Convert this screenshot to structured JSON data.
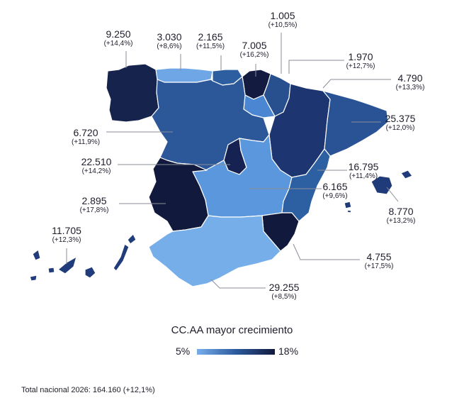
{
  "title": "CC.AA mayor crecimiento",
  "legend": {
    "min_label": "5%",
    "max_label": "18%",
    "colors": [
      "#76aeea",
      "#2c5a9e",
      "#111a3c"
    ]
  },
  "total": "Total nacional 2026: 164.160 (+12,1%)",
  "regions": [
    {
      "key": "galicia",
      "value": "9.250",
      "pct": "(+14,4%)",
      "color": "#16234d"
    },
    {
      "key": "asturias",
      "value": "3.030",
      "pct": "(+8,6%)",
      "color": "#6fa6e6"
    },
    {
      "key": "cantabria",
      "value": "2.165",
      "pct": "(+11,5%)",
      "color": "#2d5e9f"
    },
    {
      "key": "pais_vasco",
      "value": "7.005",
      "pct": "(+16,2%)",
      "color": "#131c40"
    },
    {
      "key": "la_rioja",
      "value": "1.005",
      "pct": "(+10,5%)",
      "color": "#4a86d1"
    },
    {
      "key": "navarra",
      "value": "1.970",
      "pct": "(+12,7%)",
      "color": "#28508f"
    },
    {
      "key": "aragon",
      "value": "4.790",
      "pct": "(+13,3%)",
      "color": "#1d3570"
    },
    {
      "key": "cataluna",
      "value": "25.375",
      "pct": "(+12,0%)",
      "color": "#2a5395"
    },
    {
      "key": "castilla_leon",
      "value": "6.720",
      "pct": "(+11,9%)",
      "color": "#2c5798"
    },
    {
      "key": "madrid",
      "value": "22.510",
      "pct": "(+14,2%)",
      "color": "#162352"
    },
    {
      "key": "valencia",
      "value": "16.795",
      "pct": "(+11,4%)",
      "color": "#2d60a2"
    },
    {
      "key": "castilla_la_mancha",
      "value": "6.165",
      "pct": "(+9,6%)",
      "color": "#5a97dc"
    },
    {
      "key": "extremadura",
      "value": "2.895",
      "pct": "(+17,8%)",
      "color": "#111a3c"
    },
    {
      "key": "baleares",
      "value": "8.770",
      "pct": "(+13,2%)",
      "color": "#1f3b7a"
    },
    {
      "key": "canarias",
      "value": "11.705",
      "pct": "(+12,3%)",
      "color": "#203c7b"
    },
    {
      "key": "murcia",
      "value": "4.755",
      "pct": "(+17,5%)",
      "color": "#111a3c"
    },
    {
      "key": "andalucia",
      "value": "29.255",
      "pct": "(+8,5%)",
      "color": "#76aeea"
    }
  ]
}
